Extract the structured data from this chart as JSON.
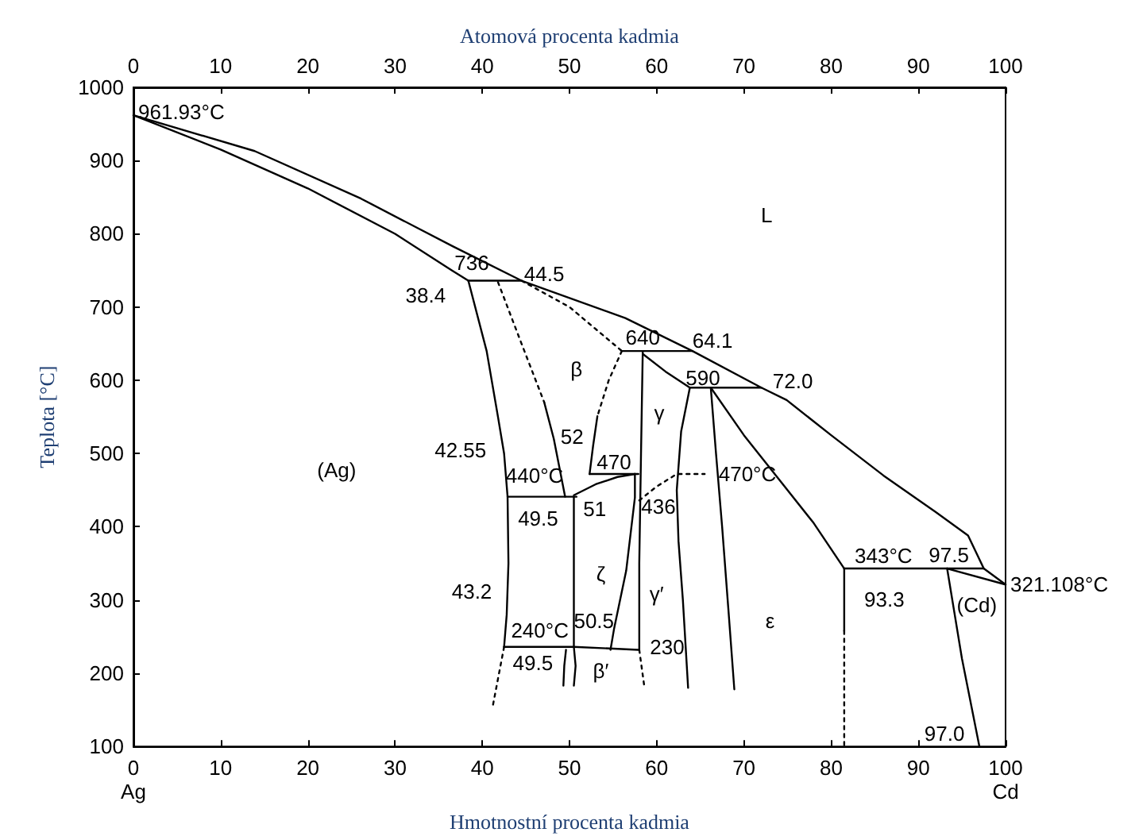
{
  "chart_data": {
    "type": "line",
    "xlabel": "Hmotnostní procenta kadmia",
    "x2label": "Atomová procenta kadmia",
    "ylabel": "Teplota [°C]",
    "xlim": [
      0,
      100
    ],
    "xticks": [
      {
        "value": 0,
        "label": "0\nAg"
      },
      10,
      20,
      30,
      40,
      50,
      60,
      70,
      80,
      90,
      {
        "value": 100,
        "label": "100\nCd"
      }
    ],
    "x2lim": [
      0,
      100
    ],
    "x2ticks": [
      0,
      10,
      20,
      30,
      40,
      50,
      60,
      70,
      80,
      90,
      100
    ],
    "ylim": [
      100,
      1000
    ],
    "yticks": [
      100,
      200,
      300,
      400,
      500,
      600,
      700,
      800,
      900,
      1000
    ],
    "grid": false,
    "marker": "none",
    "series": [
      {
        "color": "#000000",
        "line_style": "solid",
        "x": [
          0,
          13.9,
          26.1,
          36.6,
          44.5,
          56.4,
          64.1,
          72.0,
          74.9,
          80,
          86,
          92,
          95.7,
          97.5,
          100
        ],
        "values": [
          961.93,
          913,
          848,
          783,
          736,
          685,
          640,
          590,
          573,
          525,
          470,
          420,
          388,
          343,
          321.108
        ]
      },
      {
        "color": "#000000",
        "line_style": "solid",
        "x": [
          0,
          10,
          20,
          30,
          36.5,
          38.4
        ],
        "values": [
          961.93,
          915,
          862,
          800,
          750,
          736
        ]
      },
      {
        "color": "#000000",
        "line_style": "solid",
        "x": [
          38.4,
          44.5
        ],
        "values": [
          736,
          736
        ]
      },
      {
        "color": "#000000",
        "line_style": "solid",
        "x": [
          38.4,
          40.5,
          41.8,
          42.5,
          42.9,
          43.0,
          42.8,
          42.5
        ],
        "values": [
          736,
          640,
          550,
          500,
          441,
          350,
          280,
          236
        ]
      },
      {
        "color": "#000000",
        "line_style": "solid",
        "x": [
          42.9,
          50.8
        ],
        "values": [
          441,
          441
        ]
      },
      {
        "color": "#000000",
        "line_style": "solid",
        "x": [
          42.5,
          50.5,
          57.9
        ],
        "values": [
          236,
          236,
          232
        ]
      },
      {
        "color": "#000000",
        "line_style": "solid",
        "x": [
          50.5,
          50.5,
          50.7,
          50.5
        ],
        "values": [
          441,
          236,
          210,
          183
        ]
      },
      {
        "color": "#000000",
        "line_style": "solid",
        "x": [
          50.5,
          53,
          55.5,
          57.5
        ],
        "values": [
          443,
          458,
          468,
          472
        ]
      },
      {
        "color": "#000000",
        "line_style": "solid",
        "x": [
          52.3,
          57.9
        ],
        "values": [
          472,
          472
        ]
      },
      {
        "color": "#000000",
        "line_style": "solid",
        "x": [
          57.5,
          57.5,
          56.5,
          55.1,
          54.7
        ],
        "values": [
          472,
          440,
          340,
          260,
          232
        ]
      },
      {
        "color": "#000000",
        "line_style": "solid",
        "x": [
          49.6,
          49.4,
          49.3
        ],
        "values": [
          232,
          210,
          183
        ]
      },
      {
        "color": "#000000",
        "line_style": "solid",
        "x": [
          58.4,
          58.2,
          58.0,
          58.0
        ],
        "values": [
          640,
          500,
          350,
          232
        ]
      },
      {
        "color": "#000000",
        "line_style": "dotted",
        "x": [
          58.0,
          58.6
        ],
        "values": [
          232,
          180
        ]
      },
      {
        "color": "#000000",
        "line_style": "dotted",
        "x": [
          58.0,
          60.0,
          62.3,
          65.5
        ],
        "values": [
          436,
          455,
          472,
          472
        ]
      },
      {
        "color": "#000000",
        "line_style": "solid",
        "x": [
          56.0,
          64.1
        ],
        "values": [
          640,
          640
        ]
      },
      {
        "color": "#000000",
        "line_style": "solid",
        "x": [
          58.4,
          61,
          63.8
        ],
        "values": [
          636,
          612,
          590
        ]
      },
      {
        "color": "#000000",
        "line_style": "solid",
        "x": [
          63.8,
          72.0
        ],
        "values": [
          590,
          590
        ]
      },
      {
        "color": "#000000",
        "line_style": "solid",
        "x": [
          63.8,
          62.8,
          62.3,
          62.5,
          63.0,
          63.6
        ],
        "values": [
          590,
          530,
          450,
          380,
          300,
          180
        ]
      },
      {
        "color": "#000000",
        "line_style": "solid",
        "x": [
          66.2,
          66.8,
          67.5,
          68.2,
          68.9
        ],
        "values": [
          590,
          500,
          400,
          290,
          178
        ]
      },
      {
        "color": "#000000",
        "line_style": "solid",
        "x": [
          66.2,
          70,
          74,
          78,
          81.5
        ],
        "values": [
          590,
          525,
          465,
          405,
          343
        ]
      },
      {
        "color": "#000000",
        "line_style": "solid",
        "x": [
          81.5,
          97.5
        ],
        "values": [
          343,
          343
        ]
      },
      {
        "color": "#000000",
        "line_style": "solid",
        "x": [
          81.5,
          81.5
        ],
        "values": [
          343,
          258
        ]
      },
      {
        "color": "#000000",
        "line_style": "dotted",
        "x": [
          81.5,
          81.5
        ],
        "values": [
          258,
          100
        ]
      },
      {
        "color": "#000000",
        "line_style": "solid",
        "x": [
          93.3,
          100
        ],
        "values": [
          343,
          321.108
        ]
      },
      {
        "color": "#000000",
        "line_style": "solid",
        "x": [
          93.3,
          95,
          97.0
        ],
        "values": [
          343,
          220,
          100
        ]
      },
      {
        "color": "#000000",
        "line_style": "dotted",
        "x": [
          41.8,
          44.5,
          47.1
        ],
        "values": [
          734,
          650,
          570
        ]
      },
      {
        "color": "#000000",
        "line_style": "solid",
        "x": [
          47.1,
          48.2,
          49.5
        ],
        "values": [
          570,
          520,
          441
        ]
      },
      {
        "color": "#000000",
        "line_style": "dotted",
        "x": [
          44.5,
          50,
          56.0
        ],
        "values": [
          736,
          700,
          640
        ]
      },
      {
        "color": "#000000",
        "line_style": "dotted",
        "x": [
          56.0,
          54.5,
          53.2
        ],
        "values": [
          640,
          600,
          551
        ]
      },
      {
        "color": "#000000",
        "line_style": "solid",
        "x": [
          53.2,
          52.7,
          52.3
        ],
        "values": [
          551,
          510,
          472
        ]
      },
      {
        "color": "#000000",
        "line_style": "dotted",
        "x": [
          42.5,
          41.2
        ],
        "values": [
          236,
          155
        ]
      }
    ],
    "annotations": [
      {
        "text": "961.93°C",
        "x": 0,
        "y": 961.93
      },
      "736",
      "44.5",
      "38.4",
      "β",
      "640",
      "64.1",
      "590",
      "72.0",
      "L",
      "(Ag)",
      "42.55",
      "52",
      "440°C",
      "470",
      "γ",
      "470°C",
      "49.5",
      "51",
      "436",
      "ζ",
      "γ′",
      "43.2",
      "240°C",
      "50.5",
      "230",
      "49.5",
      "β′",
      "ε",
      "343°C",
      "97.5",
      {
        "text": "321.108°C",
        "x": 100,
        "y": 321.108
      },
      "93.3",
      "(Cd)",
      "97.0"
    ]
  }
}
